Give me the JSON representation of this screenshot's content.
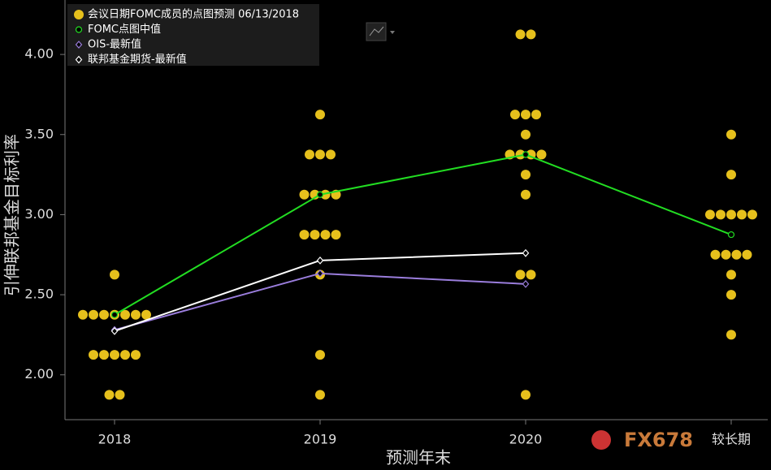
{
  "chart_data": {
    "type": "dot_plot",
    "x_label": "预测年末",
    "y_label": "引伸联邦基金目标利率",
    "categories": [
      "2018",
      "2019",
      "2020",
      "较长期"
    ],
    "ylim": [
      1.72,
      4.34
    ],
    "yticks": [
      {
        "value": 2,
        "label": "2.00"
      },
      {
        "value": 2.5,
        "label": "2.50"
      },
      {
        "value": 3,
        "label": "3.00"
      },
      {
        "value": 3.5,
        "label": "3.50"
      },
      {
        "value": 4,
        "label": "4.00"
      }
    ],
    "grid": false,
    "legend": "top-left",
    "watermark": "FX678",
    "series": [
      {
        "name": "会议日期FOMC成员的点图预测 06/13/2018",
        "type": "dots",
        "color": "#e6c01c",
        "values": [
          [
            2.625,
            2.375,
            2.375,
            2.375,
            2.375,
            2.375,
            2.375,
            2.375,
            2.125,
            2.125,
            2.125,
            2.125,
            2.125,
            1.875,
            1.875
          ],
          [
            3.625,
            3.375,
            3.375,
            3.375,
            3.125,
            3.125,
            3.125,
            3.125,
            2.875,
            2.875,
            2.875,
            2.875,
            2.625,
            2.125,
            1.875
          ],
          [
            4.125,
            4.125,
            3.625,
            3.625,
            3.625,
            3.5,
            3.375,
            3.375,
            3.375,
            3.375,
            3.25,
            3.125,
            2.625,
            2.625,
            1.875
          ],
          [
            3.5,
            3.25,
            3.0,
            3.0,
            3.0,
            3.0,
            3.0,
            2.75,
            2.75,
            2.75,
            2.75,
            2.625,
            2.5,
            2.25
          ]
        ]
      },
      {
        "name": "FOMC点图中值",
        "type": "line",
        "marker": "circle",
        "color": "#22dd22",
        "values": [
          2.375,
          3.125,
          3.375,
          2.875
        ]
      },
      {
        "name": "OIS-最新值",
        "type": "line",
        "marker": "diamond",
        "color": "#9a7ddc",
        "values": [
          2.28,
          2.633,
          2.567,
          null
        ]
      },
      {
        "name": "联邦基金期货-最新值",
        "type": "line",
        "marker": "diamond",
        "color": "#ffffff",
        "values": [
          2.273,
          2.714,
          2.76,
          null
        ]
      }
    ]
  }
}
